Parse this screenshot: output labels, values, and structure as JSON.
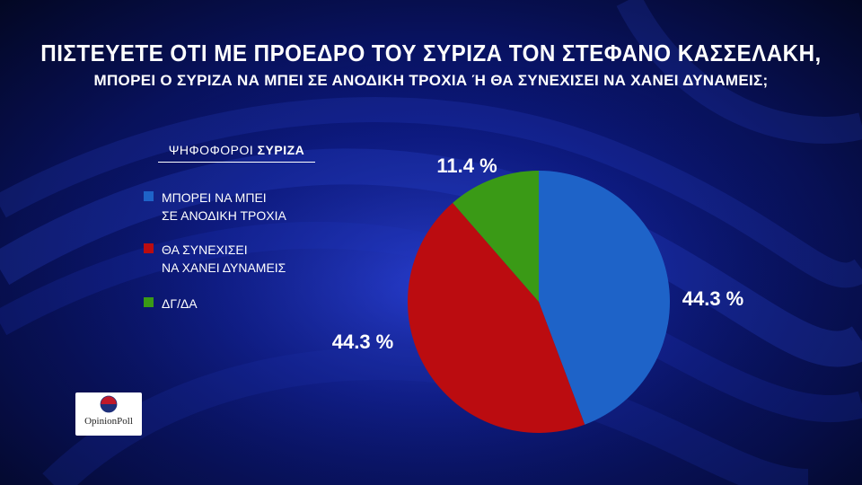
{
  "title": "ΠΙΣΤΕΥΕΤΕ ΟΤΙ ΜΕ ΠΡΟΕΔΡΟ ΤΟΥ ΣΥΡΙΖΑ ΤΟΝ ΣΤΕΦΑΝΟ ΚΑΣΣΕΛΑΚΗ,",
  "subtitle": "ΜΠΟΡΕΙ Ο ΣΥΡΙΖΑ ΝΑ ΜΠΕΙ ΣΕ ΑΝΟΔΙΚΗ ΤΡΟΧΙΑ Ή ΘΑ ΣΥΝΕΧΙΣΕΙ ΝΑ ΧΑΝΕΙ ΔΥΝΑΜΕΙΣ;",
  "legend": {
    "heading_prefix": "ΨΗΦΟΦΟΡΟΙ ",
    "heading_bold": "ΣΥΡΙΖΑ"
  },
  "logo": {
    "text": "OpinionPoll"
  },
  "chart_data": {
    "type": "pie",
    "start_angle_deg": 0,
    "direction": "clockwise",
    "slices": [
      {
        "label": "ΜΠΟΡΕΙ ΝΑ ΜΠΕΙ\nΣΕ ΑΝΟΔΙΚΗ ΤΡΟΧΙΑ",
        "value": 44.3,
        "display": "44.3 %",
        "color": "#1e63c8"
      },
      {
        "label": "ΘΑ ΣΥΝΕΧΙΣΕΙ\nΝΑ ΧΑΝΕΙ ΔΥΝΑΜΕΙΣ",
        "value": 44.3,
        "display": "44.3 %",
        "color": "#bb0c10"
      },
      {
        "label": "ΔΓ/ΔΑ",
        "value": 11.4,
        "display": "11.4 %",
        "color": "#3a9a16"
      }
    ]
  }
}
